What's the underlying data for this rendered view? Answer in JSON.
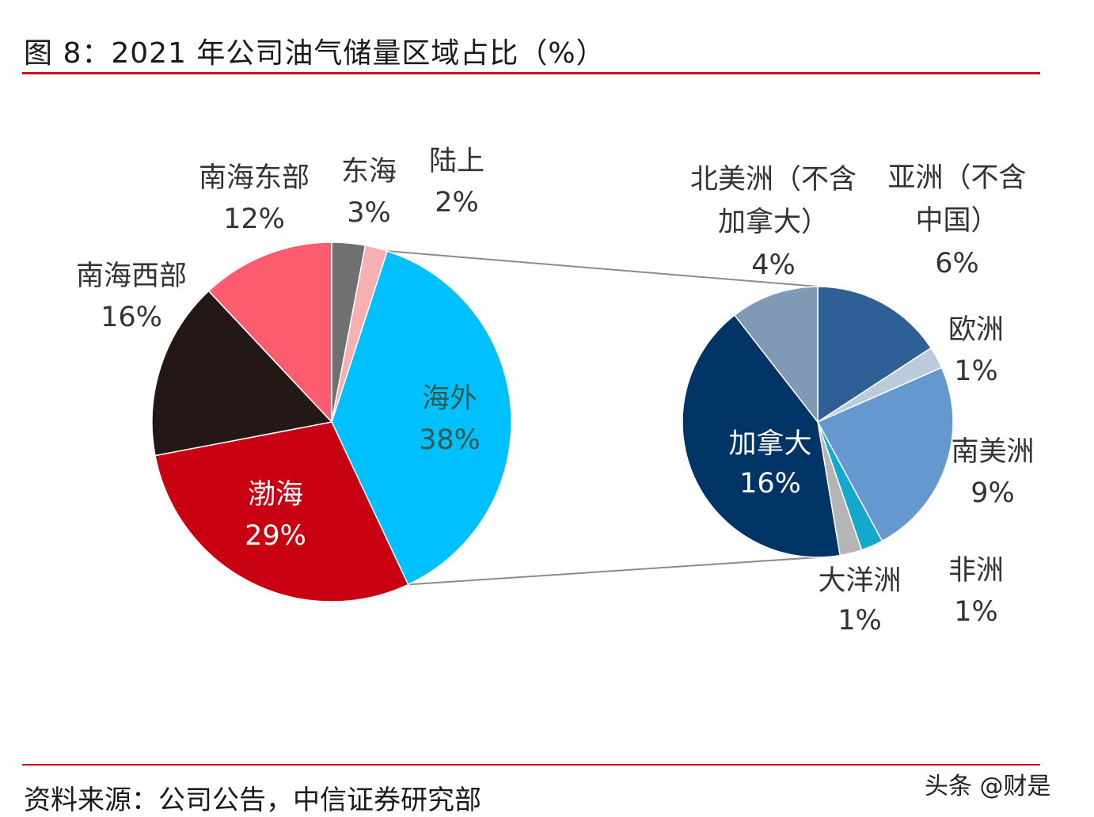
{
  "figure": {
    "title": "图 8：2021 年公司油气储量区域占比（%）",
    "source": "资料来源：公司公告，中信证券研究部",
    "watermark": "头条 @财是"
  },
  "chart_data": [
    {
      "type": "pie",
      "name": "main",
      "slices": [
        {
          "label": "海外",
          "value": 38,
          "value_label": "38%",
          "color": "#00c0ff",
          "text_color": "#2f5a4e"
        },
        {
          "label": "渤海",
          "value": 29,
          "value_label": "29%",
          "color": "#c80012",
          "text_color": "#ffffff"
        },
        {
          "label": "南海西部",
          "value": 16,
          "value_label": "16%",
          "color": "#231815",
          "text_color": "#333333"
        },
        {
          "label": "南海东部",
          "value": 12,
          "value_label": "12%",
          "color": "#fb5d6e",
          "text_color": "#333333"
        },
        {
          "label": "东海",
          "value": 3,
          "value_label": "3%",
          "color": "#707070",
          "text_color": "#333333"
        },
        {
          "label": "陆上",
          "value": 2,
          "value_label": "2%",
          "color": "#f7b0b2",
          "text_color": "#333333"
        }
      ]
    },
    {
      "type": "pie",
      "name": "breakdown-of-海外",
      "slices": [
        {
          "label": "亚洲（不含中国）",
          "value": 6,
          "value_label": "6%",
          "color": "#2e6095",
          "text_color": "#333333"
        },
        {
          "label": "欧洲",
          "value": 1,
          "value_label": "1%",
          "color": "#bccbdc",
          "text_color": "#333333"
        },
        {
          "label": "南美洲",
          "value": 9,
          "value_label": "9%",
          "color": "#6598cf",
          "text_color": "#333333"
        },
        {
          "label": "非洲",
          "value": 1,
          "value_label": "1%",
          "color": "#14a8cc",
          "text_color": "#333333"
        },
        {
          "label": "大洋洲",
          "value": 1,
          "value_label": "1%",
          "color": "#b5b5b5",
          "text_color": "#333333"
        },
        {
          "label": "加拿大",
          "value": 16,
          "value_label": "16%",
          "color": "#003366",
          "text_color": "#ffffff"
        },
        {
          "label": "北美洲（不含加拿大）",
          "value": 4,
          "value_label": "4%",
          "color": "#8099b5",
          "text_color": "#333333"
        }
      ]
    }
  ]
}
